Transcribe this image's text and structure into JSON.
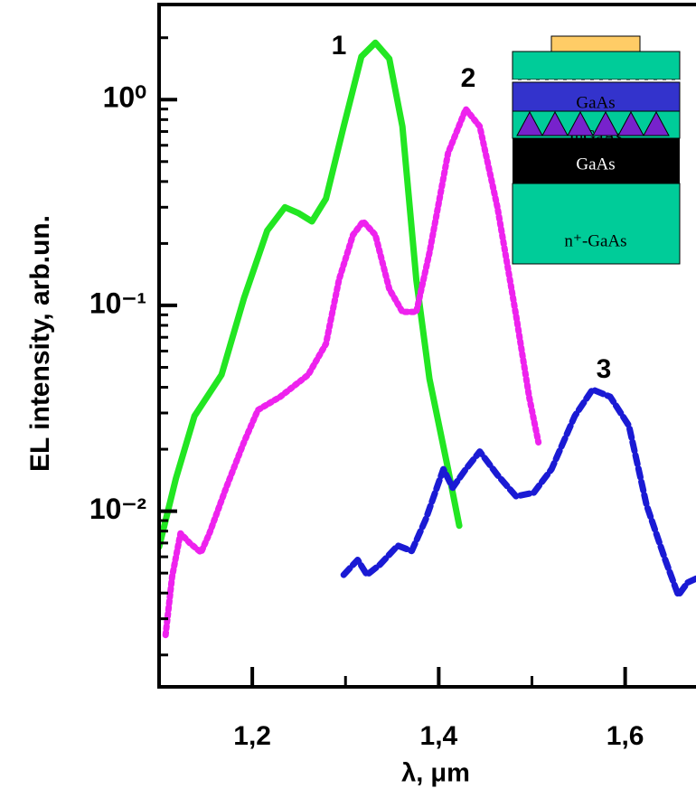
{
  "chart_data": {
    "type": "line",
    "x_label": "λ, μm",
    "y_label": "EL intensity, arb.un.",
    "log_y": true,
    "xlim": [
      1.1,
      1.676
    ],
    "ylim": [
      0.0014,
      2.9
    ],
    "xticks": [
      {
        "value": 1.2,
        "label": "1,2"
      },
      {
        "value": 1.4,
        "label": "1,4"
      },
      {
        "value": 1.6,
        "label": "1,6"
      }
    ],
    "xminorticks": [
      1.3,
      1.5
    ],
    "yticks": [
      {
        "value": 1,
        "label": "10⁰"
      },
      {
        "value": 0.1,
        "label": "10⁻¹"
      },
      {
        "value": 0.01,
        "label": "10⁻²"
      }
    ],
    "yminorticks": [
      0.002,
      0.003,
      0.004,
      0.005,
      0.006,
      0.007,
      0.008,
      0.009,
      0.02,
      0.03,
      0.04,
      0.05,
      0.06,
      0.07,
      0.08,
      0.09,
      0.2,
      0.3,
      0.4,
      0.5,
      0.6,
      0.7,
      0.8,
      0.9,
      2
    ],
    "series": [
      {
        "name": "1",
        "color": "#22e622",
        "style": "solid",
        "x": [
          1.1,
          1.118,
          1.138,
          1.167,
          1.191,
          1.216,
          1.235,
          1.25,
          1.264,
          1.279,
          1.298,
          1.317,
          1.332,
          1.347,
          1.361,
          1.376,
          1.39,
          1.41,
          1.422
        ],
        "values": [
          0.0067,
          0.0144,
          0.029,
          0.046,
          0.108,
          0.231,
          0.3,
          0.28,
          0.256,
          0.33,
          0.74,
          1.62,
          1.89,
          1.58,
          0.74,
          0.133,
          0.044,
          0.016,
          0.0085
        ]
      },
      {
        "name": "2",
        "color": "#ee22ee",
        "style": "dotted",
        "x": [
          1.107,
          1.114,
          1.123,
          1.133,
          1.145,
          1.154,
          1.172,
          1.191,
          1.206,
          1.23,
          1.26,
          1.279,
          1.293,
          1.308,
          1.319,
          1.332,
          1.347,
          1.361,
          1.376,
          1.39,
          1.41,
          1.429,
          1.444,
          1.463,
          1.483,
          1.497,
          1.507
        ],
        "values": [
          0.0025,
          0.0048,
          0.0078,
          0.007,
          0.0063,
          0.0078,
          0.013,
          0.0216,
          0.031,
          0.036,
          0.046,
          0.065,
          0.133,
          0.22,
          0.256,
          0.22,
          0.12,
          0.093,
          0.093,
          0.18,
          0.55,
          0.9,
          0.74,
          0.3,
          0.089,
          0.036,
          0.0216
        ]
      },
      {
        "name": "3",
        "color": "#1a1ad4",
        "style": "dashed",
        "x": [
          1.298,
          1.313,
          1.323,
          1.337,
          1.356,
          1.371,
          1.386,
          1.405,
          1.415,
          1.429,
          1.444,
          1.463,
          1.483,
          1.502,
          1.521,
          1.546,
          1.565,
          1.584,
          1.604,
          1.623,
          1.643,
          1.657,
          1.667,
          1.676
        ],
        "values": [
          0.0049,
          0.0058,
          0.0049,
          0.0055,
          0.0068,
          0.0064,
          0.0091,
          0.016,
          0.013,
          0.016,
          0.0195,
          0.015,
          0.0118,
          0.0123,
          0.016,
          0.029,
          0.039,
          0.036,
          0.026,
          0.0107,
          0.0058,
          0.0039,
          0.0045,
          0.0047
        ]
      }
    ],
    "inset": {
      "labels": [
        "GaAs",
        "InGaAs",
        "GaAs",
        "n⁺-GaAs"
      ]
    }
  }
}
